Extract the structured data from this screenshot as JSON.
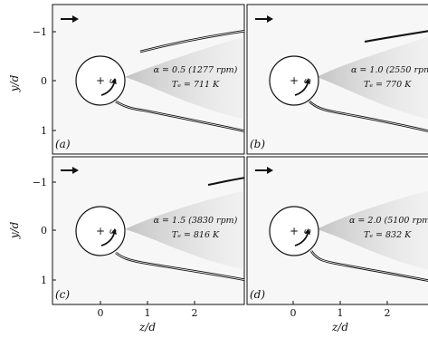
{
  "axes": {
    "xlabel": "z/d",
    "ylabel": "y/d",
    "xticks": [
      "0",
      "1",
      "2"
    ],
    "yticks": [
      "−1",
      "0",
      "1"
    ]
  },
  "panels": [
    {
      "label": "(a)",
      "alpha_text": "α = 0.5 (1277 rpm)",
      "tc_text": "Tₑ = 711 K",
      "omega": "ω"
    },
    {
      "label": "(b)",
      "alpha_text": "α = 1.0 (2550 rpm",
      "tc_text": "Tₑ = 770 K",
      "omega": "ω"
    },
    {
      "label": "(c)",
      "alpha_text": "α = 1.5 (3830 rpm)",
      "tc_text": "Tₑ = 816 K",
      "omega": "ω"
    },
    {
      "label": "(d)",
      "alpha_text": "α = 2.0 (5100 rpm",
      "tc_text": "Tₑ = 832 K",
      "omega": "ω"
    }
  ],
  "colors": {
    "frame": "#111111",
    "shock": "#111111",
    "wake": "#bdbdbd",
    "background": "#f7f7f7"
  }
}
